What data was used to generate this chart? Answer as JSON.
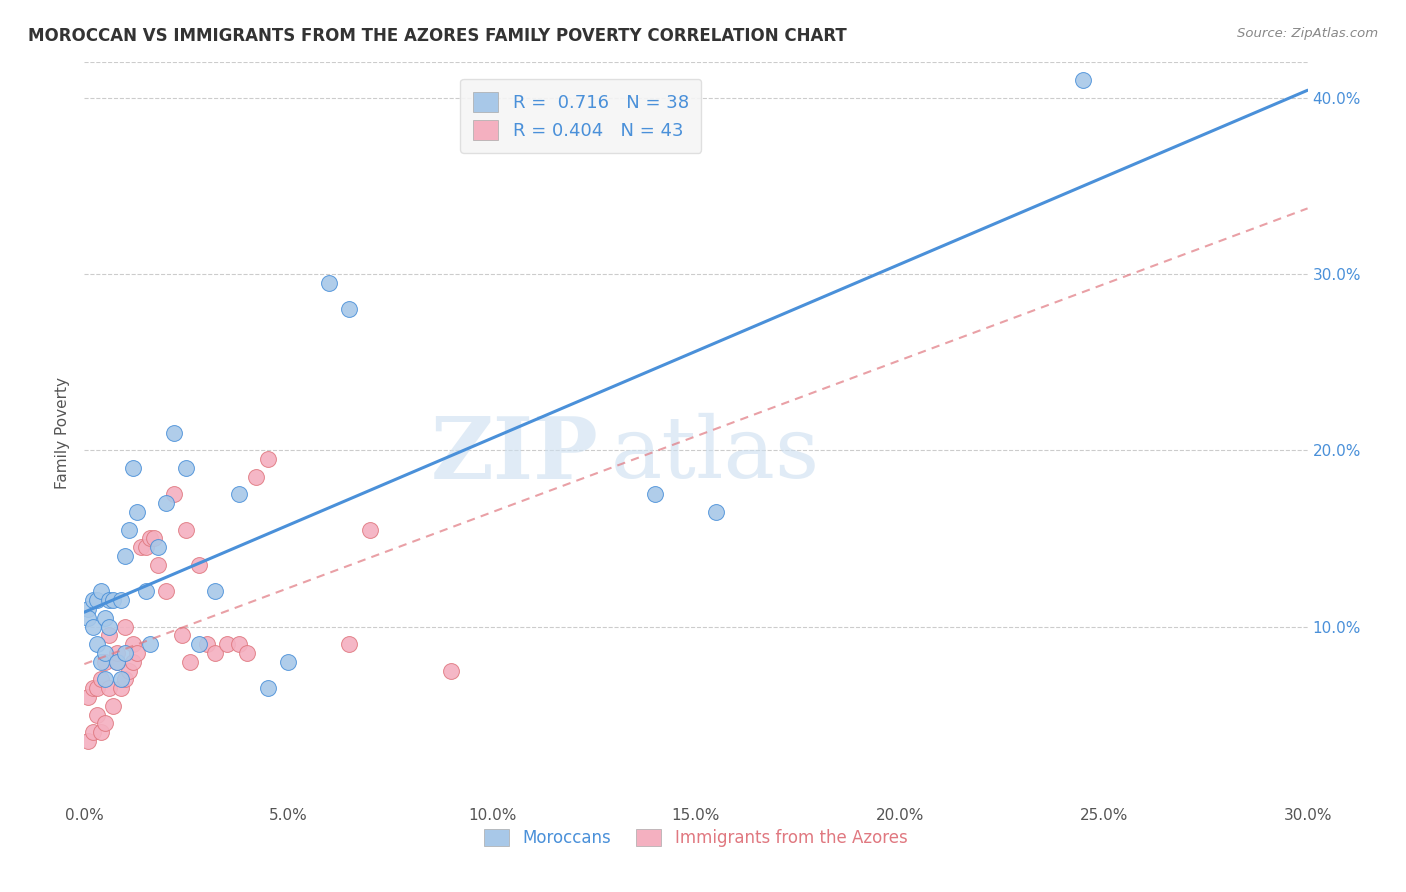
{
  "title": "MOROCCAN VS IMMIGRANTS FROM THE AZORES FAMILY POVERTY CORRELATION CHART",
  "source": "Source: ZipAtlas.com",
  "ylabel": "Family Poverty",
  "xlim": [
    0.0,
    0.3
  ],
  "ylim": [
    0.0,
    0.42
  ],
  "xticks": [
    0.0,
    0.05,
    0.1,
    0.15,
    0.2,
    0.25,
    0.3
  ],
  "yticks_right": [
    0.1,
    0.2,
    0.3,
    0.4
  ],
  "legend_labels": [
    "Moroccans",
    "Immigrants from the Azores"
  ],
  "R_moroccan": 0.716,
  "N_moroccan": 38,
  "R_azores": 0.404,
  "N_azores": 43,
  "moroccan_color": "#a8c8e8",
  "azores_color": "#f4b0c0",
  "moroccan_line_color": "#4a90d9",
  "azores_line_color": "#e07880",
  "watermark_zip": "ZIP",
  "watermark_atlas": "atlas",
  "background_color": "#ffffff",
  "moroccan_x": [
    0.001,
    0.001,
    0.002,
    0.002,
    0.003,
    0.003,
    0.004,
    0.004,
    0.005,
    0.005,
    0.005,
    0.006,
    0.006,
    0.007,
    0.008,
    0.009,
    0.009,
    0.01,
    0.01,
    0.011,
    0.012,
    0.013,
    0.015,
    0.016,
    0.018,
    0.02,
    0.022,
    0.025,
    0.028,
    0.032,
    0.038,
    0.045,
    0.05,
    0.06,
    0.065,
    0.14,
    0.155,
    0.245
  ],
  "moroccan_y": [
    0.11,
    0.105,
    0.115,
    0.1,
    0.115,
    0.09,
    0.12,
    0.08,
    0.105,
    0.085,
    0.07,
    0.115,
    0.1,
    0.115,
    0.08,
    0.115,
    0.07,
    0.14,
    0.085,
    0.155,
    0.19,
    0.165,
    0.12,
    0.09,
    0.145,
    0.17,
    0.21,
    0.19,
    0.09,
    0.12,
    0.175,
    0.065,
    0.08,
    0.295,
    0.28,
    0.175,
    0.165,
    0.41
  ],
  "azores_x": [
    0.001,
    0.001,
    0.002,
    0.002,
    0.003,
    0.003,
    0.004,
    0.004,
    0.005,
    0.005,
    0.006,
    0.006,
    0.007,
    0.008,
    0.008,
    0.009,
    0.01,
    0.01,
    0.011,
    0.012,
    0.012,
    0.013,
    0.014,
    0.015,
    0.016,
    0.017,
    0.018,
    0.02,
    0.022,
    0.024,
    0.025,
    0.026,
    0.028,
    0.03,
    0.032,
    0.035,
    0.038,
    0.04,
    0.042,
    0.045,
    0.065,
    0.07,
    0.09
  ],
  "azores_y": [
    0.035,
    0.06,
    0.04,
    0.065,
    0.05,
    0.065,
    0.04,
    0.07,
    0.045,
    0.08,
    0.065,
    0.095,
    0.055,
    0.08,
    0.085,
    0.065,
    0.07,
    0.1,
    0.075,
    0.08,
    0.09,
    0.085,
    0.145,
    0.145,
    0.15,
    0.15,
    0.135,
    0.12,
    0.175,
    0.095,
    0.155,
    0.08,
    0.135,
    0.09,
    0.085,
    0.09,
    0.09,
    0.085,
    0.185,
    0.195,
    0.09,
    0.155,
    0.075
  ]
}
